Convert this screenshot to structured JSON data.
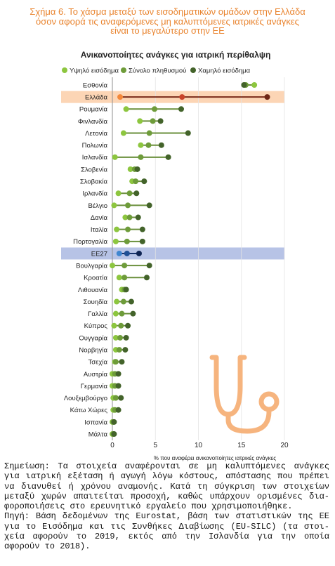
{
  "figure": {
    "title_lines": [
      "Σχήμα 6. Το χάσμα μεταξύ των εισοδηματικών ομάδων στην Ελλάδα",
      "όσον αφορά τις αναφερόμενες μη καλυπτόμενες ιατρικές ανάγκες",
      "είναι το μεγαλύτερο στην ΕΕ"
    ],
    "title_color": "#e9842f"
  },
  "chart_data": {
    "type": "scatter",
    "connected_dots": true,
    "title": "Ανικανοποίητες ανάγκες για ιατρική περίθαλψη",
    "xlabel": "% που αναφέρει ανικανοποίητες ιατρικές ανάγκες",
    "ylabel": "",
    "xlim": [
      0,
      20
    ],
    "x_ticks": [
      0,
      5,
      10,
      15,
      20
    ],
    "grid": true,
    "legend_position": "top",
    "connector_color": "#6a8f3b",
    "categories": [
      "Εσθονία",
      "Ελλάδα",
      "Ρουμανία",
      "Φινλανδία",
      "Λετονία",
      "Πολωνία",
      "Ισλανδία",
      "Σλοβενία",
      "Σλοβακία",
      "Ιρλανδία",
      "Βέλγιο",
      "Δανία",
      "Ιταλία",
      "Πορτογαλία",
      "ΕΕ27",
      "Βουλγαρία",
      "Κροατία",
      "Λιθουανία",
      "Σουηδία",
      "Γαλλία",
      "Κύπρος",
      "Ουγγαρία",
      "Νορβηγία",
      "Τσεχία",
      "Αυστρία",
      "Γερμανία",
      "Λουξεμβούργο",
      "Κάτω Χώρες",
      "Ισπανία",
      "Μάλτα"
    ],
    "series": [
      {
        "name": "Υψηλό εισόδημα",
        "color": "#8dc63f",
        "values": [
          16.5,
          0.9,
          1.6,
          3.2,
          1.3,
          3.3,
          0.3,
          2.1,
          2.3,
          0.7,
          0.2,
          1.5,
          0.5,
          0.4,
          0.8,
          0.0,
          0.8,
          1.1,
          0.5,
          0.4,
          0.2,
          0.4,
          0.4,
          0.3,
          0.0,
          0.0,
          0.1,
          0.1,
          0.0,
          0.0
        ]
      },
      {
        "name": "Σύνολο πληθυσμού",
        "color": "#6e9c3a",
        "values": [
          15.5,
          8.1,
          4.9,
          4.7,
          4.3,
          4.2,
          3.3,
          2.6,
          2.7,
          2.0,
          1.8,
          2.0,
          1.8,
          1.7,
          1.7,
          1.4,
          1.4,
          1.4,
          1.3,
          1.1,
          1.0,
          0.9,
          0.8,
          0.4,
          0.3,
          0.3,
          0.4,
          0.3,
          0.1,
          0.1
        ]
      },
      {
        "name": "Χαμηλό εισόδημα",
        "color": "#43632a",
        "values": [
          15.3,
          18.0,
          8.0,
          5.6,
          8.8,
          5.7,
          6.5,
          2.9,
          3.7,
          2.8,
          4.3,
          3.0,
          3.5,
          3.5,
          3.1,
          4.3,
          4.0,
          1.6,
          2.2,
          2.4,
          1.8,
          1.6,
          1.5,
          1.1,
          0.7,
          0.7,
          1.0,
          0.7,
          0.2,
          0.2
        ]
      }
    ],
    "highlights": [
      {
        "index": 1,
        "band_color": "#fcd5b5",
        "dot_colors": [
          "#f4883a",
          "#c9432a",
          "#6f2716"
        ],
        "line_color": "#7a2b1a"
      },
      {
        "index": 14,
        "band_color": "#b7c3e6",
        "dot_colors": [
          "#3f86d0",
          "#1f4f95",
          "#0e2353"
        ],
        "line_color": "#15306a"
      }
    ]
  },
  "decoration": {
    "icon": "stethoscope-icon",
    "color": "#f6b47e"
  },
  "notes": {
    "lines": [
      "Σημείωση: Τα στοιχεία αναφέρονται σε μη καλυπτόμενες ανάγκες",
      "για ιατρική εξέταση ή αγωγή λόγω κόστους, απόστασης που πρέπει",
      "να διανυθεί ή χρόνου αναμονής. Κατά τη σύγκριση των στοιχείων",
      "μεταξύ χωρών απαιτείται προσοχή, καθώς υπάρχουν ορισμένες δια-",
      "φοροποιήσεις στο ερευνητικό εργαλείο που χρησιμοποιήθηκε.",
      "Πηγή: Βάση δεδομένων της Eurostat, βάση των στατιστικών της ΕΕ",
      "για το Εισόδημα και τις Συνθήκες Διαβίωσης (EU-SILC) (τα στοι-",
      "χεία αφορούν το 2019, εκτός από την Ισλανδία για την οποία",
      "αφορούν το 2018)."
    ]
  }
}
